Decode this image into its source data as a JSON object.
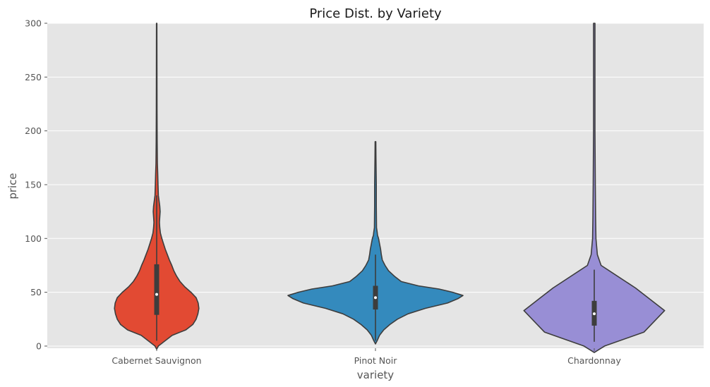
{
  "chart_data": {
    "type": "violin",
    "title": "Price Dist. by Variety",
    "xlabel": "variety",
    "ylabel": "price",
    "ylim": [
      -2,
      300
    ],
    "yticks": [
      0,
      50,
      100,
      150,
      200,
      250,
      300
    ],
    "grid": true,
    "background": "#e5e5e5",
    "categories": [
      "Cabernet Sauvignon",
      "Pinot Noir",
      "Chardonnay"
    ],
    "colors": [
      "#e24a33",
      "#348abd",
      "#988ed5"
    ],
    "series": [
      {
        "category": "Cabernet Sauvignon",
        "whisker": [
          5,
          140
        ],
        "q1": 29,
        "median": 48,
        "q3": 76,
        "density": [
          [
            -3,
            0
          ],
          [
            0,
            5
          ],
          [
            5,
            25
          ],
          [
            10,
            45
          ],
          [
            15,
            85
          ],
          [
            20,
            105
          ],
          [
            25,
            115
          ],
          [
            30,
            120
          ],
          [
            35,
            123
          ],
          [
            40,
            121
          ],
          [
            45,
            115
          ],
          [
            50,
            100
          ],
          [
            55,
            82
          ],
          [
            60,
            68
          ],
          [
            65,
            58
          ],
          [
            70,
            50
          ],
          [
            75,
            44
          ],
          [
            80,
            37
          ],
          [
            85,
            31
          ],
          [
            90,
            25
          ],
          [
            95,
            20
          ],
          [
            100,
            15
          ],
          [
            105,
            11
          ],
          [
            110,
            9
          ],
          [
            115,
            8
          ],
          [
            120,
            9
          ],
          [
            125,
            10
          ],
          [
            130,
            9
          ],
          [
            135,
            7
          ],
          [
            140,
            5
          ],
          [
            150,
            4
          ],
          [
            160,
            3
          ],
          [
            170,
            2
          ],
          [
            190,
            1.5
          ],
          [
            220,
            1
          ],
          [
            260,
            0.8
          ],
          [
            300,
            0.6
          ]
        ]
      },
      {
        "category": "Pinot Noir",
        "whisker": [
          5,
          85
        ],
        "q1": 34,
        "median": 45,
        "q3": 56,
        "density": [
          [
            2,
            0
          ],
          [
            5,
            5
          ],
          [
            10,
            12
          ],
          [
            15,
            24
          ],
          [
            20,
            42
          ],
          [
            25,
            64
          ],
          [
            30,
            95
          ],
          [
            35,
            145
          ],
          [
            40,
            210
          ],
          [
            44,
            240
          ],
          [
            47,
            255
          ],
          [
            50,
            225
          ],
          [
            53,
            185
          ],
          [
            56,
            125
          ],
          [
            60,
            75
          ],
          [
            65,
            55
          ],
          [
            70,
            38
          ],
          [
            75,
            28
          ],
          [
            80,
            20
          ],
          [
            85,
            17
          ],
          [
            90,
            15
          ],
          [
            95,
            12
          ],
          [
            100,
            9
          ],
          [
            103,
            6
          ],
          [
            106,
            5
          ],
          [
            110,
            3
          ],
          [
            130,
            2.5
          ],
          [
            150,
            2.5
          ],
          [
            160,
            2
          ],
          [
            175,
            1.5
          ],
          [
            190,
            1
          ]
        ]
      },
      {
        "category": "Chardonnay",
        "whisker": [
          4,
          71
        ],
        "q1": 19,
        "median": 30,
        "q3": 42,
        "density": [
          [
            -6,
            0
          ],
          [
            0,
            30
          ],
          [
            13,
            145
          ],
          [
            33,
            205
          ],
          [
            54,
            120
          ],
          [
            75,
            20
          ],
          [
            85,
            9
          ],
          [
            100,
            5
          ],
          [
            120,
            4
          ],
          [
            150,
            3
          ],
          [
            200,
            2
          ],
          [
            250,
            2
          ],
          [
            300,
            2
          ]
        ]
      }
    ]
  }
}
